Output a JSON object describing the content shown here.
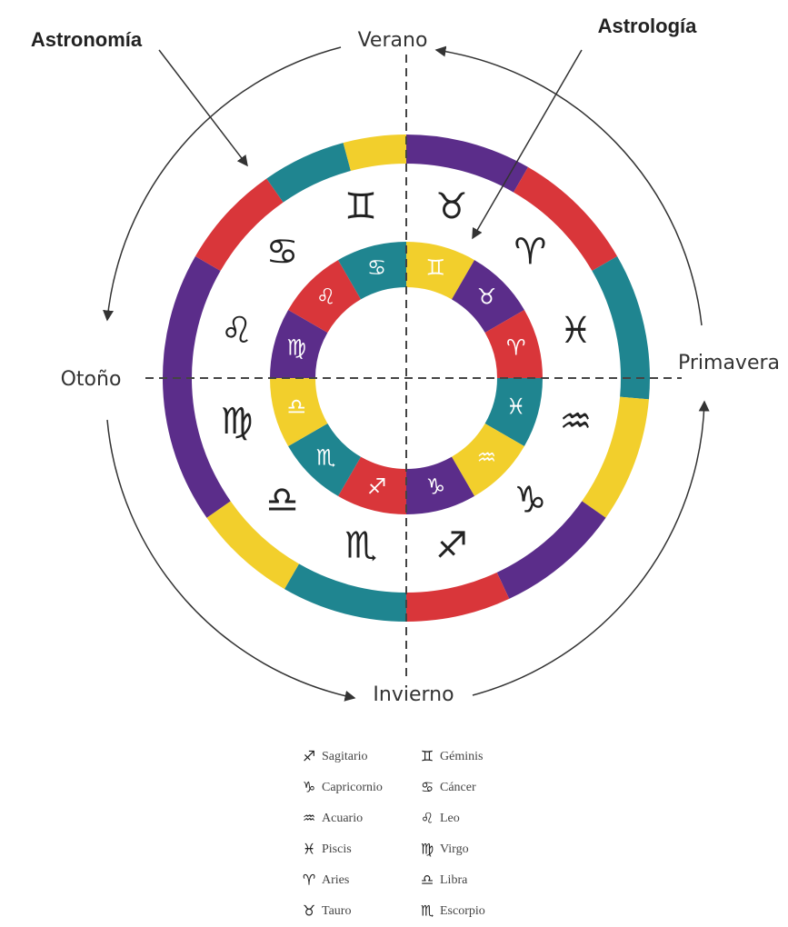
{
  "labels": {
    "astronomy": "Astronomía",
    "astrology": "Astrología",
    "summer": "Verano",
    "autumn": "Otoño",
    "spring": "Primavera",
    "winter": "Invierno"
  },
  "outer_signs": [
    "♉",
    "♈",
    "♓",
    "♒",
    "♑",
    "♐",
    "♏",
    "♎",
    "♍",
    "♌",
    "♋",
    "♊"
  ],
  "inner_signs": [
    "♊",
    "♉",
    "♈",
    "♓",
    "♒",
    "♑",
    "♐",
    "♏",
    "♎",
    "♍",
    "♌",
    "♋"
  ],
  "legend": [
    {
      "symbol": "♐",
      "name": "Sagitario"
    },
    {
      "symbol": "♑",
      "name": "Capricornio"
    },
    {
      "symbol": "♒",
      "name": "Acuario"
    },
    {
      "symbol": "♓",
      "name": "Piscis"
    },
    {
      "symbol": "♈",
      "name": "Aries"
    },
    {
      "symbol": "♉",
      "name": "Tauro"
    },
    {
      "symbol": "♊",
      "name": "Géminis"
    },
    {
      "symbol": "♋",
      "name": "Cáncer"
    },
    {
      "symbol": "♌",
      "name": "Leo"
    },
    {
      "symbol": "♍",
      "name": "Virgo"
    },
    {
      "symbol": "♎",
      "name": "Libra"
    },
    {
      "symbol": "♏",
      "name": "Escorpio"
    }
  ]
}
